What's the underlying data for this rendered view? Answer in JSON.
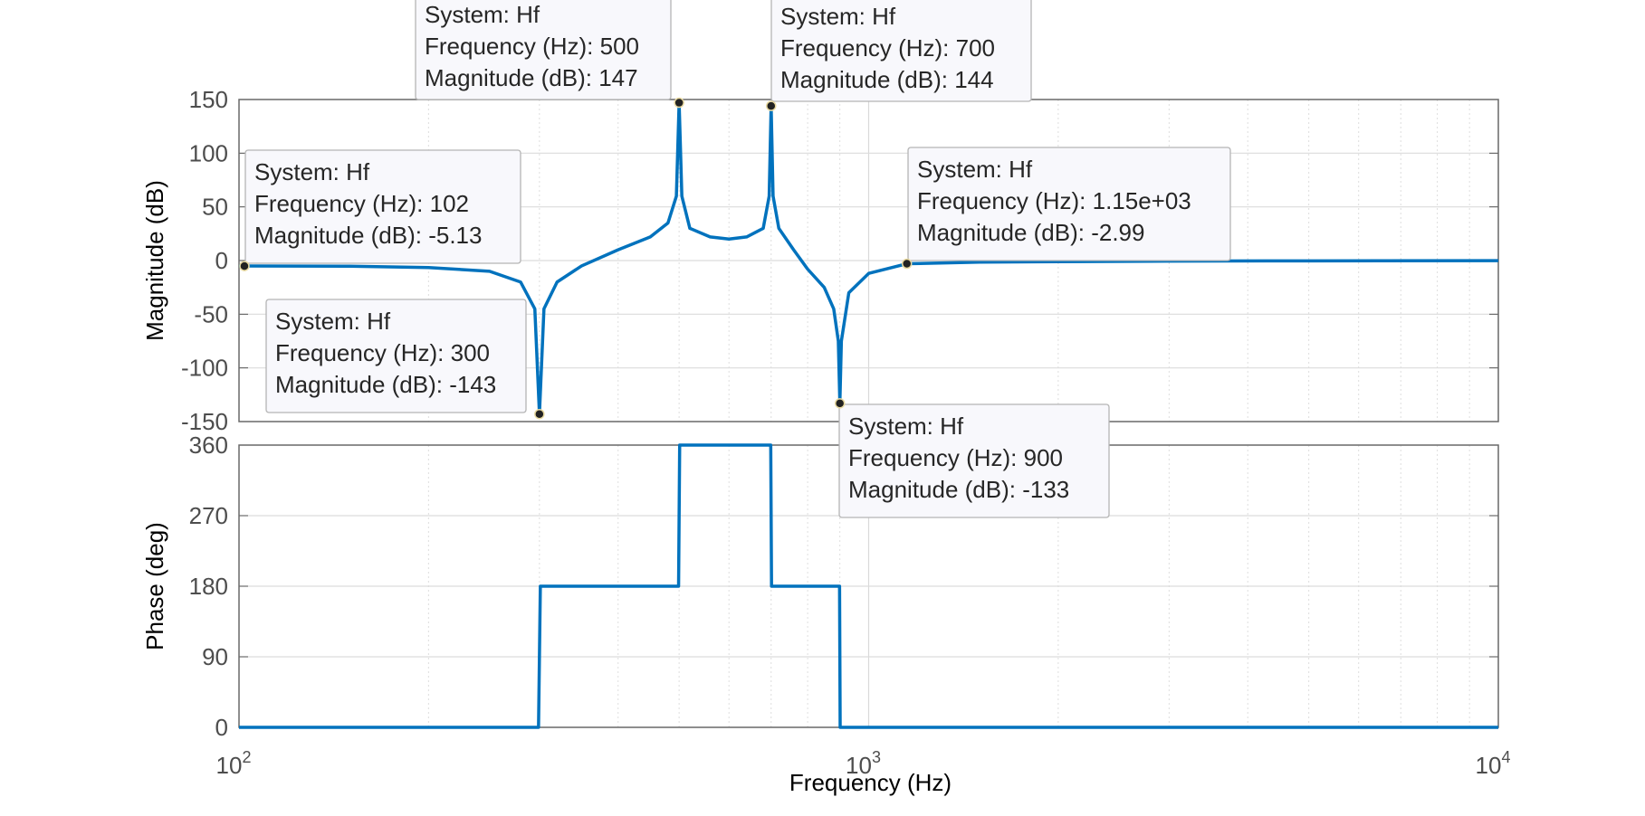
{
  "chart_data": [
    {
      "type": "line",
      "subplot": "magnitude",
      "xscale": "log",
      "xlim": [
        100,
        10000
      ],
      "ylim": [
        -150,
        150
      ],
      "ylabel": "Magnitude (dB)",
      "yticks": [
        "150",
        "100",
        "50",
        "0",
        "-50",
        "-100",
        "-150"
      ],
      "grid": true,
      "line_color": "#0072BD",
      "series": [
        {
          "x": [
            100,
            150,
            200,
            250,
            280,
            295,
            300,
            305,
            320,
            350,
            400,
            450,
            480,
            495,
            500,
            505,
            520,
            560,
            600,
            640,
            680,
            695,
            700,
            705,
            720,
            760,
            800,
            850,
            880,
            895,
            900,
            905,
            930,
            1000,
            1150,
            1500,
            2000,
            3000,
            5000,
            10000
          ],
          "y": [
            -5.1,
            -5.3,
            -6.5,
            -10,
            -20,
            -45,
            -143,
            -45,
            -20,
            -5,
            10,
            22,
            35,
            60,
            147,
            60,
            30,
            22,
            20,
            22,
            30,
            60,
            144,
            60,
            30,
            10,
            -8,
            -25,
            -45,
            -75,
            -133,
            -75,
            -30,
            -12,
            -2.99,
            -1.5,
            -1,
            -0.5,
            -0.3,
            -0.1
          ]
        }
      ],
      "datatips": [
        {
          "system": "Hf",
          "frequency": "102",
          "magnitude": "-5.13"
        },
        {
          "system": "Hf",
          "frequency": "300",
          "magnitude": "-143"
        },
        {
          "system": "Hf",
          "frequency": "500",
          "magnitude": "147"
        },
        {
          "system": "Hf",
          "frequency": "700",
          "magnitude": "144"
        },
        {
          "system": "Hf",
          "frequency": "900",
          "magnitude": "-133"
        },
        {
          "system": "Hf",
          "frequency": "1.15e+03",
          "magnitude": "-2.99"
        }
      ]
    },
    {
      "type": "line",
      "subplot": "phase",
      "xscale": "log",
      "xlim": [
        100,
        10000
      ],
      "ylim": [
        0,
        360
      ],
      "ylabel": "Phase (deg)",
      "xlabel": "Frequency  (Hz)",
      "yticks": [
        "360",
        "270",
        "180",
        "90",
        "0"
      ],
      "grid": true,
      "line_color": "#0072BD",
      "series": [
        {
          "x": [
            100,
            299,
            301,
            499,
            501,
            699,
            701,
            899,
            901,
            10000
          ],
          "y": [
            0,
            0,
            180,
            180,
            360,
            360,
            180,
            180,
            0,
            0
          ]
        }
      ]
    }
  ],
  "labels": {
    "xtick_base": "10",
    "xtick_exps": [
      "2",
      "3",
      "4"
    ],
    "tip_system_prefix": "System: ",
    "tip_freq_prefix": "Frequency (Hz): ",
    "tip_mag_prefix": "Magnitude (dB): "
  }
}
